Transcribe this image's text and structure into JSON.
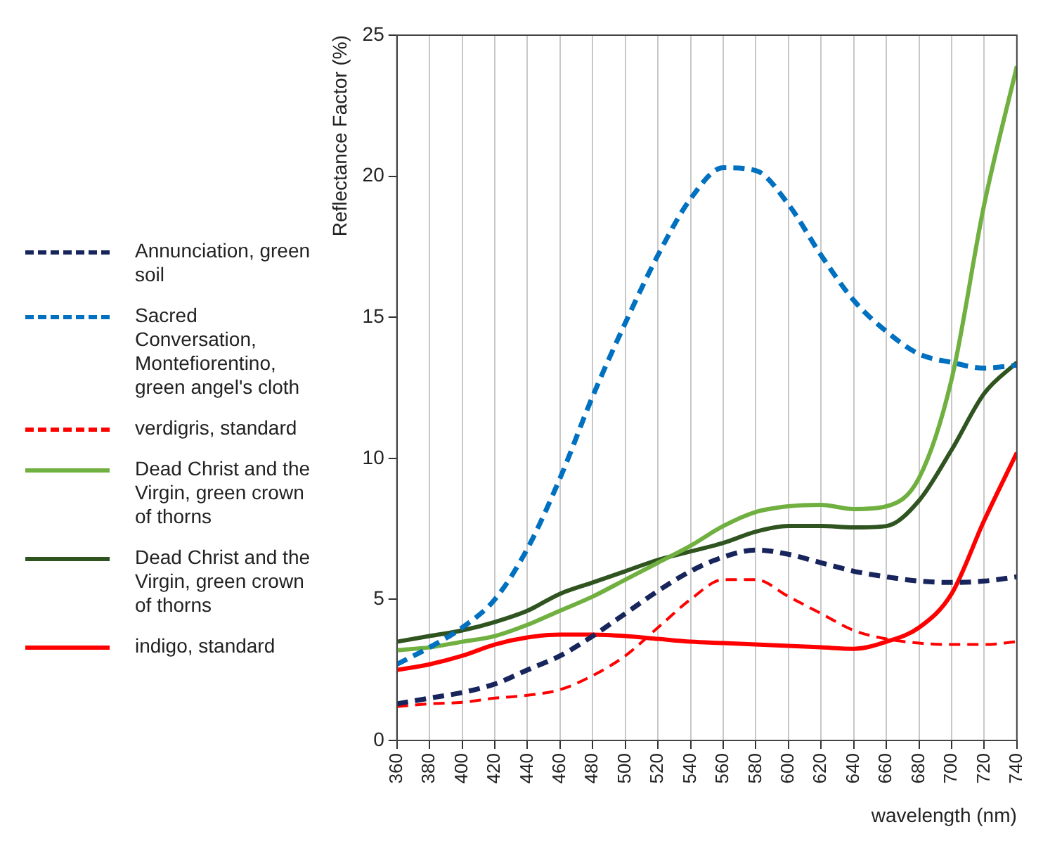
{
  "chart_data": {
    "type": "line",
    "xlabel": "wavelength (nm)",
    "ylabel": "Reflectance Factor (%)",
    "x": [
      360,
      380,
      400,
      420,
      440,
      460,
      480,
      500,
      520,
      540,
      560,
      580,
      600,
      620,
      640,
      660,
      680,
      700,
      720,
      740
    ],
    "xlim": [
      360,
      740
    ],
    "xticks": [
      360,
      380,
      400,
      420,
      440,
      460,
      480,
      500,
      520,
      540,
      560,
      580,
      600,
      620,
      640,
      660,
      680,
      700,
      720,
      740
    ],
    "ylim": [
      0,
      25
    ],
    "yticks": [
      0,
      5,
      10,
      15,
      20,
      25
    ],
    "grid": "x",
    "legend": "left",
    "marker": "none",
    "series": [
      {
        "name": "Annunciation, green soil",
        "color": "#17255c",
        "line_style": "dashed",
        "values": [
          1.3,
          1.5,
          1.7,
          2.0,
          2.5,
          3.0,
          3.7,
          4.5,
          5.3,
          6.0,
          6.5,
          6.75,
          6.6,
          6.3,
          6.0,
          5.8,
          5.65,
          5.6,
          5.65,
          5.8
        ]
      },
      {
        "name": "Sacred Conversation, Montefiorentino, green angel's cloth",
        "color": "#0070c0",
        "line_style": "dashed",
        "values": [
          2.7,
          3.3,
          4.0,
          5.0,
          6.8,
          9.3,
          12.2,
          14.8,
          17.2,
          19.2,
          20.3,
          20.2,
          19.0,
          17.2,
          15.6,
          14.5,
          13.7,
          13.4,
          13.2,
          13.3
        ]
      },
      {
        "name": "verdigris, standard",
        "color": "#ff0000",
        "line_style": "dashed",
        "values": [
          1.2,
          1.3,
          1.35,
          1.5,
          1.6,
          1.8,
          2.3,
          3.0,
          4.0,
          5.0,
          5.7,
          5.7,
          5.1,
          4.5,
          3.9,
          3.6,
          3.45,
          3.4,
          3.4,
          3.5
        ]
      },
      {
        "name": "Dead Christ and the Virgin, green crown of thorns",
        "color": "#70b040",
        "line_style": "solid",
        "values": [
          3.2,
          3.3,
          3.5,
          3.7,
          4.1,
          4.6,
          5.1,
          5.7,
          6.3,
          6.9,
          7.6,
          8.1,
          8.3,
          8.35,
          8.2,
          8.3,
          9.3,
          12.8,
          19.0,
          23.9
        ]
      },
      {
        "name": "Dead Christ and the Virgin, green crown of thorns",
        "color": "#2f5420",
        "line_style": "solid",
        "values": [
          3.5,
          3.7,
          3.9,
          4.2,
          4.6,
          5.2,
          5.6,
          6.0,
          6.4,
          6.7,
          7.0,
          7.4,
          7.6,
          7.6,
          7.55,
          7.6,
          8.5,
          10.3,
          12.3,
          13.4
        ]
      },
      {
        "name": "indigo, standard",
        "color": "#ff0000",
        "line_style": "solid",
        "values": [
          2.5,
          2.7,
          3.0,
          3.4,
          3.65,
          3.75,
          3.75,
          3.7,
          3.6,
          3.5,
          3.45,
          3.4,
          3.35,
          3.3,
          3.25,
          3.5,
          4.0,
          5.2,
          7.8,
          10.2
        ]
      }
    ]
  }
}
